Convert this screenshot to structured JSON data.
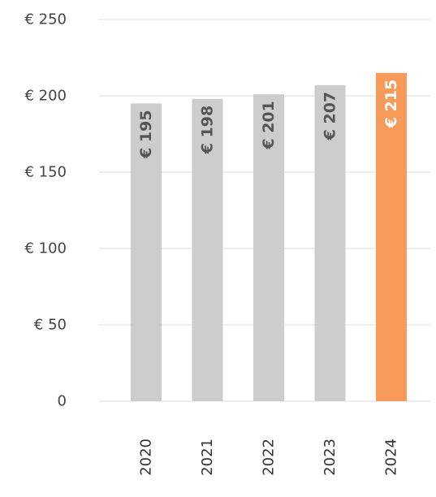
{
  "chart_data": {
    "type": "bar",
    "categories": [
      "2020",
      "2021",
      "2022",
      "2023",
      "2024"
    ],
    "values": [
      195,
      198,
      201,
      207,
      215
    ],
    "value_labels": [
      "€ 195",
      "€ 198",
      "€ 201",
      "€ 207",
      "€ 215"
    ],
    "colors": [
      "#cdcdce",
      "#cdcdce",
      "#cdcdce",
      "#cdcdce",
      "#f79a5a"
    ],
    "label_colors": [
      "#555555",
      "#555555",
      "#555555",
      "#555555",
      "#ffffff"
    ],
    "ylim": [
      0,
      250
    ],
    "yticks": [
      0,
      {
        "value": 50,
        "label": "€ 50"
      },
      {
        "value": 100,
        "label": "€ 100"
      },
      {
        "value": 150,
        "label": "€ 150"
      },
      {
        "value": 200,
        "label": "€ 200"
      },
      {
        "value": 250,
        "label": "€ 250"
      }
    ],
    "grid": true
  }
}
